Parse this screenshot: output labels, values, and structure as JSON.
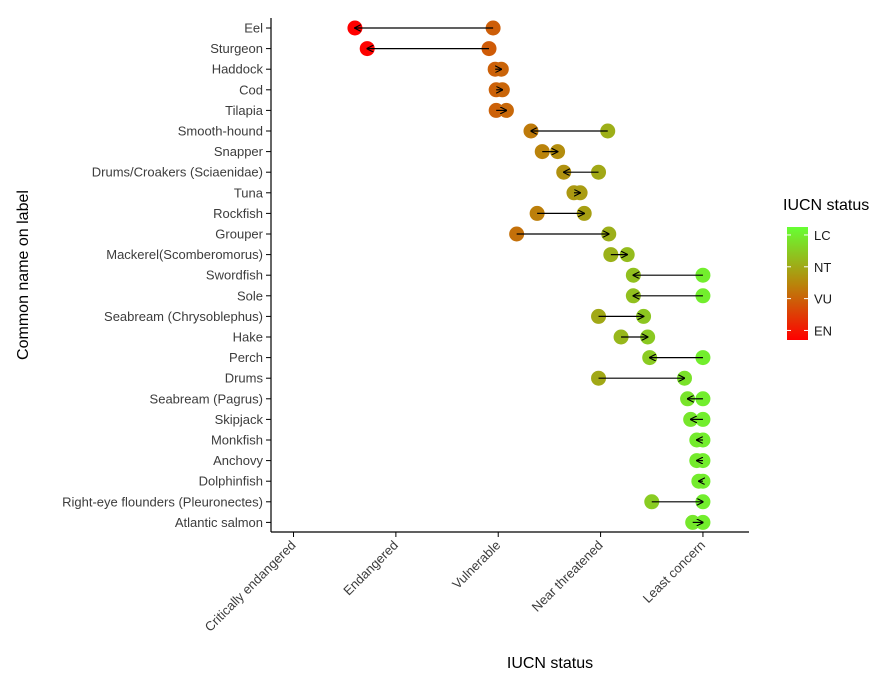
{
  "chart_data": {
    "type": "dumbbell",
    "xlabel": "IUCN status",
    "ylabel": "Common name on label",
    "x_categories": [
      "Critically endangered",
      "Endangered",
      "Vulnerable",
      "Near threatened",
      "Least concern"
    ],
    "x_range": [
      0.78,
      5.45
    ],
    "grid": false,
    "legend": {
      "title": "IUCN status",
      "placement": "right",
      "labels": [
        "LC",
        "NT",
        "VU",
        "EN"
      ],
      "label_values": [
        5,
        4,
        3,
        2
      ],
      "gradient_range": [
        1.7,
        5.25
      ]
    },
    "colors": {
      "low": "#ff0000",
      "mid": "#b8860b",
      "high": "#66ff33",
      "arrow": "#000000",
      "axis": "#000000"
    },
    "rows": [
      {
        "name": "Eel",
        "from": 2.95,
        "to": 1.6
      },
      {
        "name": "Sturgeon",
        "from": 2.91,
        "to": 1.72
      },
      {
        "name": "Haddock",
        "from": 2.97,
        "to": 3.03
      },
      {
        "name": "Cod",
        "from": 2.98,
        "to": 3.04
      },
      {
        "name": "Tilapia",
        "from": 2.98,
        "to": 3.08
      },
      {
        "name": "Smooth-hound",
        "from": 4.07,
        "to": 3.32
      },
      {
        "name": "Snapper",
        "from": 3.43,
        "to": 3.58
      },
      {
        "name": "Drums/Croakers (Sciaenidae)",
        "from": 3.98,
        "to": 3.64
      },
      {
        "name": "Tuna",
        "from": 3.74,
        "to": 3.8
      },
      {
        "name": "Rockfish",
        "from": 3.38,
        "to": 3.84
      },
      {
        "name": "Grouper",
        "from": 3.18,
        "to": 4.08
      },
      {
        "name": "Mackerel(Scomberomorus)",
        "from": 4.1,
        "to": 4.26
      },
      {
        "name": "Swordfish",
        "from": 5.0,
        "to": 4.32
      },
      {
        "name": "Sole",
        "from": 5.0,
        "to": 4.32
      },
      {
        "name": "Seabream (Chrysoblephus)",
        "from": 3.98,
        "to": 4.42
      },
      {
        "name": "Hake",
        "from": 4.2,
        "to": 4.46
      },
      {
        "name": "Perch",
        "from": 5.0,
        "to": 4.48
      },
      {
        "name": "Drums",
        "from": 3.98,
        "to": 4.82
      },
      {
        "name": "Seabream (Pagrus)",
        "from": 5.0,
        "to": 4.85
      },
      {
        "name": "Skipjack",
        "from": 5.0,
        "to": 4.88
      },
      {
        "name": "Monkfish",
        "from": 5.0,
        "to": 4.94
      },
      {
        "name": "Anchovy",
        "from": 5.0,
        "to": 4.94
      },
      {
        "name": "Dolphinfish",
        "from": 5.0,
        "to": 4.96
      },
      {
        "name": "Right-eye flounders (Pleuronectes)",
        "from": 4.5,
        "to": 5.0
      },
      {
        "name": "Atlantic salmon",
        "from": 4.9,
        "to": 5.0
      }
    ]
  }
}
